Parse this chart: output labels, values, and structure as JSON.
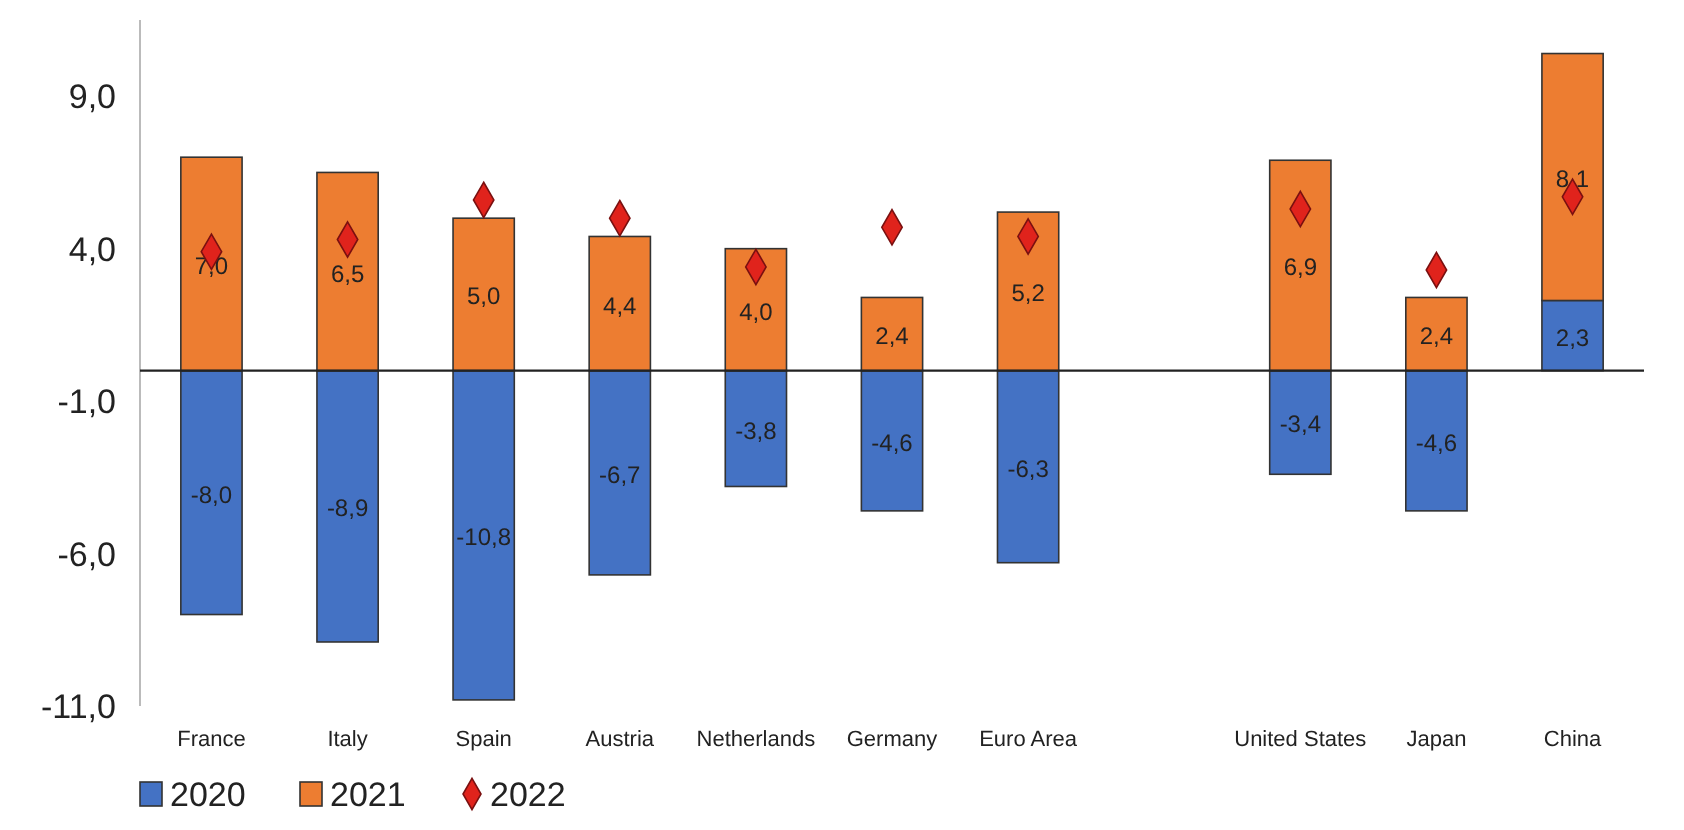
{
  "chart_data": {
    "type": "bar",
    "stacked": true,
    "categories": [
      "France",
      "Italy",
      "Spain",
      "Austria",
      "Netherlands",
      "Germany",
      "Euro Area",
      null,
      "United States",
      "Japan",
      "China"
    ],
    "series": [
      {
        "name": "2020",
        "color": "#4472c4",
        "values": [
          -8.0,
          -8.9,
          -10.8,
          -6.7,
          -3.8,
          -4.6,
          -6.3,
          null,
          -3.4,
          -4.6,
          2.3
        ],
        "value_labels": [
          "-8,0",
          "-8,9",
          "-10,8",
          "-6,7",
          "-3,8",
          "-4,6",
          "-6,3",
          null,
          "-3,4",
          "-4,6",
          "2,3"
        ]
      },
      {
        "name": "2021",
        "color": "#ed7d31",
        "values": [
          7.0,
          6.5,
          5.0,
          4.4,
          4.0,
          2.4,
          5.2,
          null,
          6.9,
          2.4,
          8.1
        ],
        "value_labels": [
          "7,0",
          "6,5",
          "5,0",
          "4,4",
          "4,0",
          "2,4",
          "5,2",
          null,
          "6,9",
          "2,4",
          "8,1"
        ]
      },
      {
        "name": "2022",
        "type": "scatter",
        "color": "#e0231c",
        "marker": "diamond",
        "values": [
          3.9,
          4.3,
          5.6,
          5.0,
          3.4,
          4.7,
          4.4,
          null,
          5.3,
          3.3,
          5.7
        ]
      }
    ],
    "ylim": [
      -11,
      11.5
    ],
    "yticks": [
      {
        "value": 9,
        "label": "9,0"
      },
      {
        "value": 4,
        "label": "4,0"
      },
      {
        "value": -1,
        "label": "-1,0"
      },
      {
        "value": -6,
        "label": "-6,0"
      },
      {
        "value": -11,
        "label": "-11,0"
      }
    ],
    "legend": "bottom left"
  }
}
